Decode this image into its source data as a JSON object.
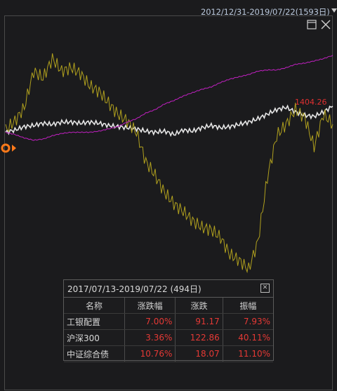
{
  "header": {
    "date_range": "2012/12/31-2019/07/22(1593日)"
  },
  "window": {
    "restore_icon": "restore-window-icon",
    "close_icon": "close-icon"
  },
  "chart_data": {
    "type": "line",
    "title": "",
    "last_value_label": "1404.26",
    "series": [
      {
        "color": "#e6e6e6",
        "values": [
          0.08,
          0.1,
          0.13,
          0.14,
          0.16,
          0.15,
          0.17,
          0.17,
          0.16,
          0.17,
          0.16,
          0.14,
          0.13,
          0.12,
          0.11,
          0.09,
          0.08,
          0.09,
          0.06,
          0.1,
          0.09,
          0.12,
          0.14,
          0.12,
          0.13,
          0.15,
          0.17,
          0.2,
          0.24,
          0.28,
          0.3,
          0.26,
          0.23,
          0.22,
          0.26,
          0.31
        ]
      },
      {
        "color": "#b0a01e",
        "values": [
          0.1,
          0.18,
          0.3,
          0.62,
          0.56,
          0.73,
          0.62,
          0.65,
          0.6,
          0.49,
          0.44,
          0.34,
          0.24,
          0.18,
          0.08,
          -0.18,
          -0.3,
          -0.45,
          -0.55,
          -0.62,
          -0.7,
          -0.76,
          -0.78,
          -0.85,
          -1.0,
          -1.05,
          -1.13,
          -0.88,
          -0.32,
          0.05,
          0.15,
          0.28,
          0.21,
          -0.05,
          0.24,
          0.15
        ]
      },
      {
        "color": "#c020c0",
        "values": [
          0.08,
          0.06,
          0.03,
          0.01,
          0.02,
          0.05,
          0.07,
          0.08,
          0.08,
          0.08,
          0.09,
          0.11,
          0.13,
          0.17,
          0.2,
          0.25,
          0.28,
          0.33,
          0.36,
          0.4,
          0.43,
          0.46,
          0.48,
          0.52,
          0.55,
          0.57,
          0.59,
          0.62,
          0.63,
          0.63,
          0.65,
          0.68,
          0.69,
          0.71,
          0.73,
          0.76
        ]
      }
    ],
    "ylim": [
      -1.2,
      1.0
    ]
  },
  "panel": {
    "title": "2017/07/13-2019/07/22 (494日)",
    "columns": [
      "名称",
      "涨跌幅",
      "涨跌",
      "振幅"
    ],
    "rows": [
      {
        "name": "工银配置",
        "pct": "7.00%",
        "chg": "91.17",
        "amp": "7.93%"
      },
      {
        "name": "沪深300",
        "pct": "3.36%",
        "chg": "122.86",
        "amp": "40.11%"
      },
      {
        "name": "中证综合债",
        "pct": "10.76%",
        "chg": "18.07",
        "amp": "11.10%"
      }
    ]
  }
}
